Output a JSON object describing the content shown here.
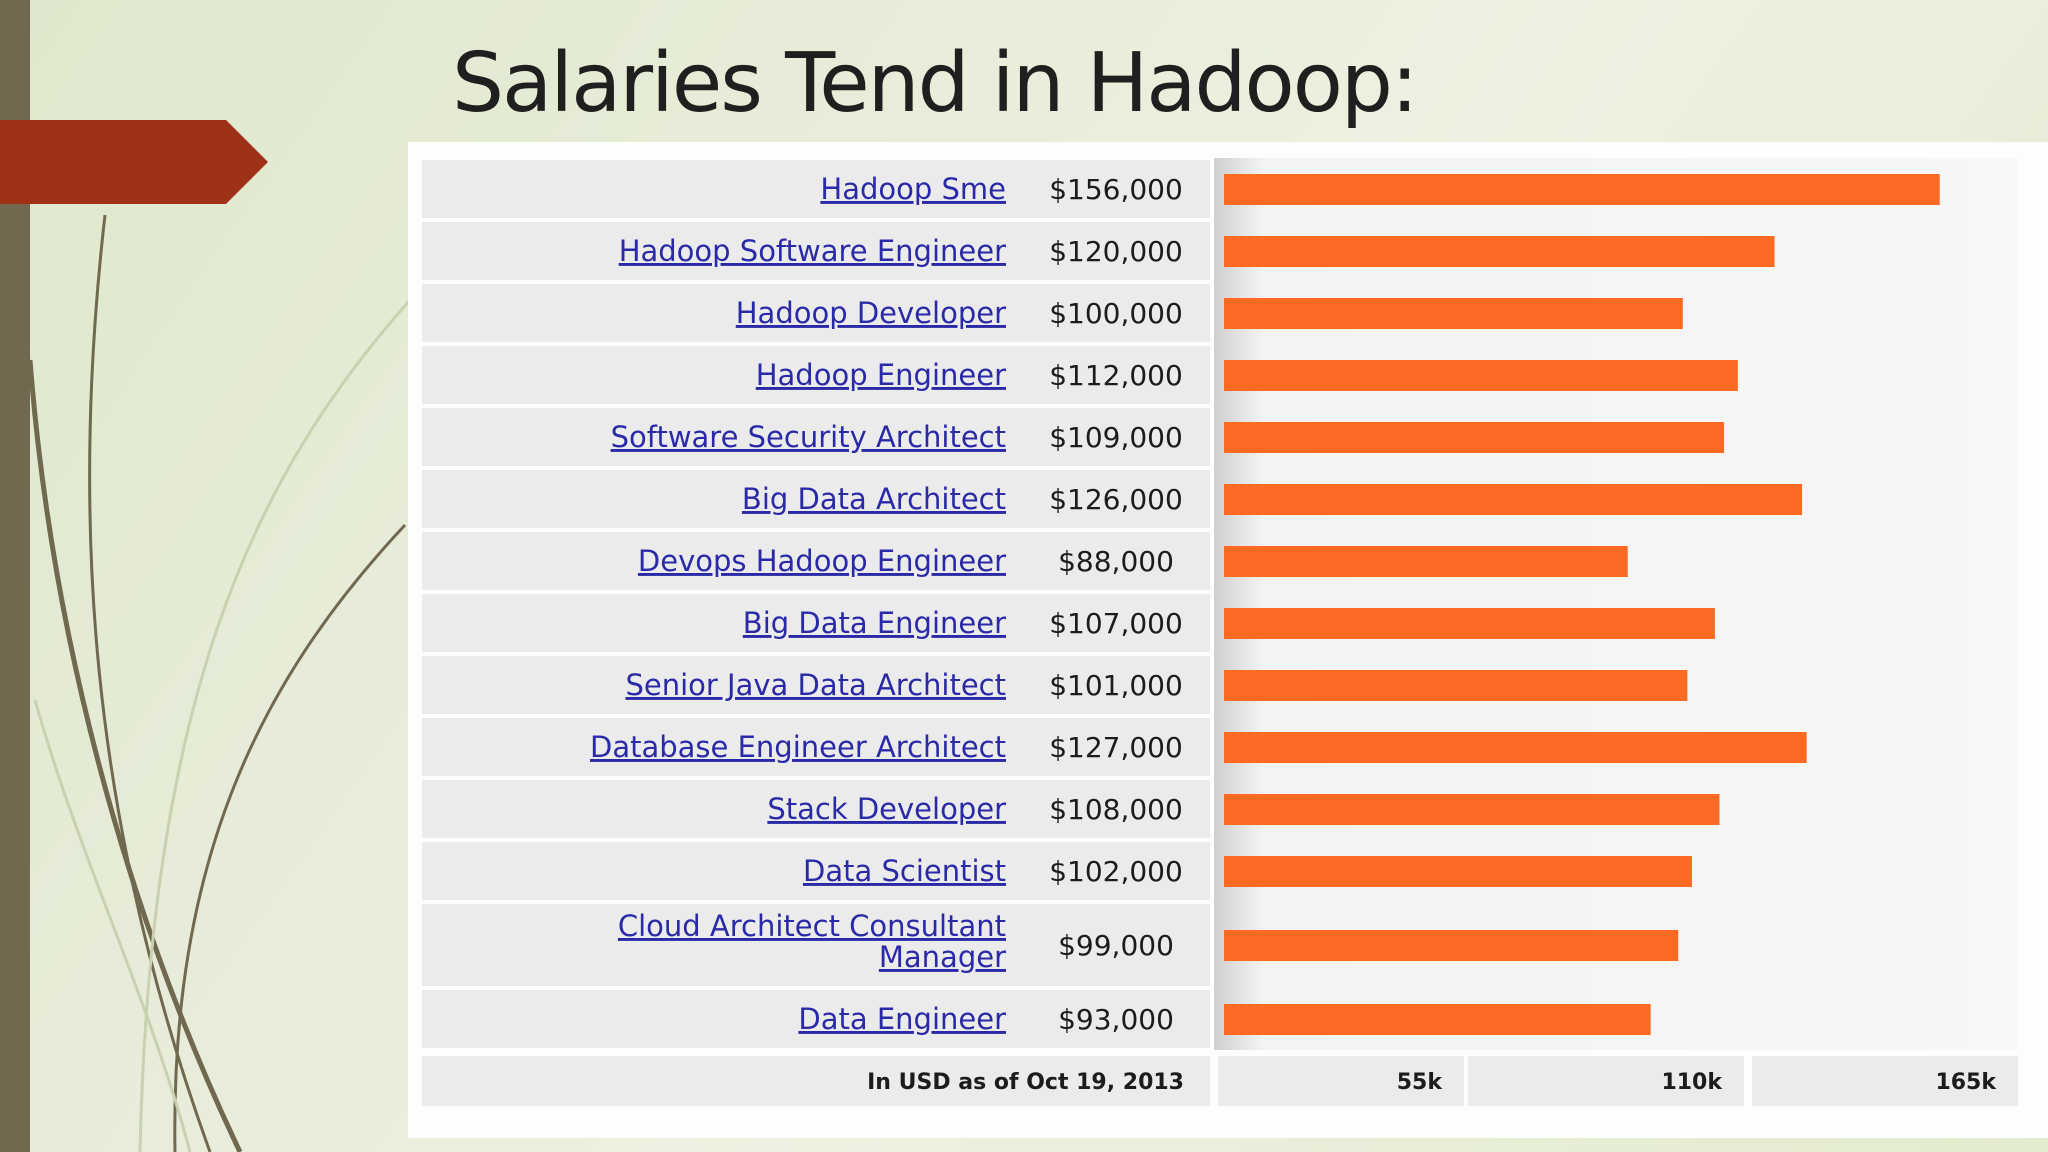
{
  "slide": {
    "title": "Salaries Tend in Hadoop:",
    "colors": {
      "sidebar": "#70694f",
      "arrow": "#a03016",
      "bar": "#fb6a22",
      "link": "#2a2aa8",
      "row_bg": "#ebebeb"
    }
  },
  "chart_data": {
    "type": "bar",
    "orientation": "horizontal",
    "categories": [
      "Hadoop Sme",
      "Hadoop Software Engineer",
      "Hadoop Developer",
      "Hadoop Engineer",
      "Software Security Architect",
      "Big Data Architect",
      "Devops Hadoop Engineer",
      "Big Data Engineer",
      "Senior Java Data Architect",
      "Database Engineer Architect",
      "Stack Developer",
      "Data Scientist",
      "Cloud Architect Consultant Manager",
      "Data Engineer"
    ],
    "category_lines": [
      [
        "Hadoop Sme"
      ],
      [
        "Hadoop Software Engineer"
      ],
      [
        "Hadoop Developer"
      ],
      [
        "Hadoop Engineer"
      ],
      [
        "Software Security Architect"
      ],
      [
        "Big Data Architect"
      ],
      [
        "Devops Hadoop Engineer"
      ],
      [
        "Big Data Engineer"
      ],
      [
        "Senior Java Data Architect"
      ],
      [
        "Database Engineer Architect"
      ],
      [
        "Stack Developer"
      ],
      [
        "Data Scientist"
      ],
      [
        "Cloud Architect Consultant",
        "Manager"
      ],
      [
        "Data Engineer"
      ]
    ],
    "value_labels": [
      "$156,000",
      "$120,000",
      "$100,000",
      "$112,000",
      "$109,000",
      "$126,000",
      "$88,000",
      "$107,000",
      "$101,000",
      "$127,000",
      "$108,000",
      "$102,000",
      "$99,000",
      "$93,000"
    ],
    "values": [
      156000,
      120000,
      100000,
      112000,
      109000,
      126000,
      88000,
      107000,
      101000,
      127000,
      108000,
      102000,
      99000,
      93000
    ],
    "footnote": "In USD as of Oct 19, 2013",
    "x_ticks": [
      "55k",
      "110k",
      "165k"
    ],
    "xlim": [
      0,
      165000
    ],
    "legend": "none",
    "grid": false
  }
}
